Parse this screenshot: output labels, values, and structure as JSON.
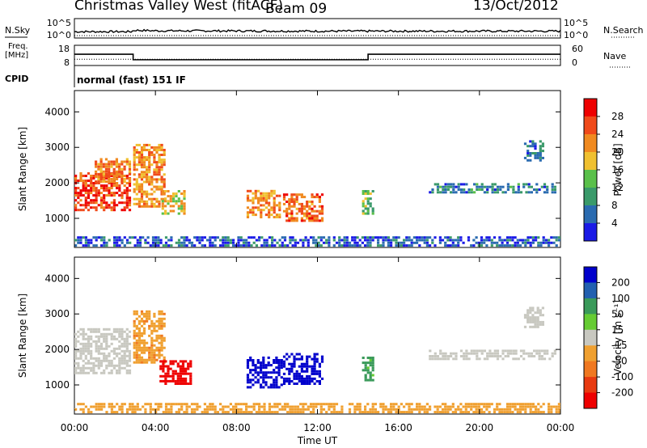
{
  "header": {
    "station": "Christmas Valley West (fitACF)",
    "beam": "Beam 09",
    "date": "13/Oct/2012"
  },
  "side_labels": {
    "nsky": "N.Sky",
    "nsearch": "N.Search",
    "freq": "Freq.",
    "freq_unit": "[MHz]",
    "nave": "Nave",
    "cpid": "CPID",
    "cpid_value": "normal (fast) 151 IF"
  },
  "chart_data": [
    {
      "type": "line",
      "panel": "noise",
      "left_ticks": [
        "10^5",
        "10^0"
      ],
      "right_ticks": [
        "10^5",
        "10^0"
      ],
      "series": [
        {
          "name": "N.Sky",
          "x": [
            0,
            2.8,
            3.0,
            4.0,
            12,
            24
          ],
          "values": [
            1,
            1,
            3,
            2,
            1.5,
            1.5
          ]
        },
        {
          "name": "N.Search",
          "x": [
            0,
            24
          ],
          "values": [
            1,
            1
          ]
        }
      ]
    },
    {
      "type": "line",
      "panel": "frequency",
      "left_ticks": [
        "18",
        "8"
      ],
      "right_ticks": [
        "60",
        "0"
      ],
      "series": [
        {
          "name": "Freq.",
          "x": [
            0,
            2.9,
            2.9,
            14.5,
            14.5,
            24
          ],
          "values": [
            14.3,
            14.3,
            10.7,
            10.7,
            14.3,
            14.3
          ]
        },
        {
          "name": "Nave",
          "x": [
            0,
            24
          ],
          "values": [
            18,
            18
          ]
        }
      ]
    },
    {
      "type": "heatmap",
      "panel": "power",
      "ylabel": "Slant Range [km]",
      "yticks": [
        1000,
        2000,
        3000,
        4000
      ],
      "ylim": [
        180,
        4600
      ],
      "xlim": [
        0,
        24
      ],
      "colorbar": {
        "label": "Power [dB]",
        "ticks": [
          "4",
          "8",
          "12",
          "16",
          "20",
          "24",
          "28"
        ]
      },
      "regions": [
        {
          "t0": 0.0,
          "t1": 2.8,
          "r0": 1200,
          "r1": 2300,
          "level": 27
        },
        {
          "t0": 1.0,
          "t1": 2.8,
          "r0": 2000,
          "r1": 2700,
          "level": 23
        },
        {
          "t0": 2.9,
          "t1": 4.5,
          "r0": 1300,
          "r1": 3100,
          "level": 22
        },
        {
          "t0": 4.3,
          "t1": 5.5,
          "r0": 1100,
          "r1": 1800,
          "level": 18
        },
        {
          "t0": 8.5,
          "t1": 10.2,
          "r0": 1000,
          "r1": 1800,
          "level": 22
        },
        {
          "t0": 10.3,
          "t1": 12.3,
          "r0": 900,
          "r1": 1700,
          "level": 24
        },
        {
          "t0": 14.2,
          "t1": 14.8,
          "r0": 1100,
          "r1": 1800,
          "level": 13
        },
        {
          "t0": 17.5,
          "t1": 23.8,
          "r0": 1700,
          "r1": 2000,
          "level": 8
        },
        {
          "t0": 22.2,
          "t1": 23.2,
          "r0": 2600,
          "r1": 3200,
          "level": 7
        },
        {
          "t0": 0.0,
          "t1": 24.0,
          "r0": 200,
          "r1": 500,
          "level": 5
        }
      ]
    },
    {
      "type": "heatmap",
      "panel": "velocity",
      "ylabel": "Slant Range [km]",
      "yticks": [
        1000,
        2000,
        3000,
        4000
      ],
      "ylim": [
        180,
        4600
      ],
      "xlim": [
        0,
        24
      ],
      "xlabel": "Time UT",
      "xticks": [
        "00:00",
        "04:00",
        "08:00",
        "12:00",
        "16:00",
        "20:00",
        "00:00"
      ],
      "colorbar": {
        "label": "Velocity [m s⁻¹]",
        "ticks": [
          "200",
          "100",
          "50",
          "15",
          "-15",
          "-50",
          "-100",
          "-200"
        ]
      },
      "regions": [
        {
          "t0": 0.0,
          "t1": 2.8,
          "r0": 1300,
          "r1": 2600,
          "level": 0
        },
        {
          "t0": 2.9,
          "t1": 4.5,
          "r0": 1600,
          "r1": 3100,
          "level": -40
        },
        {
          "t0": 4.2,
          "t1": 5.8,
          "r0": 1000,
          "r1": 1700,
          "level": -220
        },
        {
          "t0": 8.5,
          "t1": 10.3,
          "r0": 900,
          "r1": 1800,
          "level": 220
        },
        {
          "t0": 10.3,
          "t1": 12.3,
          "r0": 1000,
          "r1": 1900,
          "level": 230
        },
        {
          "t0": 14.2,
          "t1": 14.8,
          "r0": 1100,
          "r1": 1800,
          "level": 60
        },
        {
          "t0": 17.5,
          "t1": 23.8,
          "r0": 1700,
          "r1": 2000,
          "level": 0
        },
        {
          "t0": 22.2,
          "t1": 23.2,
          "r0": 2600,
          "r1": 3200,
          "level": 0
        },
        {
          "t0": 0.0,
          "t1": 24.0,
          "r0": 200,
          "r1": 500,
          "level": -30
        }
      ]
    }
  ],
  "colors": {
    "power": [
      "#1a1ae6",
      "#2a6bb0",
      "#3a9a6a",
      "#5ac04a",
      "#f0c030",
      "#f08a20",
      "#f04a1a",
      "#ee0000"
    ],
    "velocity": [
      "#0000cc",
      "#2260b0",
      "#3a9a5a",
      "#66cc33",
      "#c8c8c0",
      "#f0a030",
      "#f07820",
      "#e83a10",
      "#ee0000"
    ]
  }
}
